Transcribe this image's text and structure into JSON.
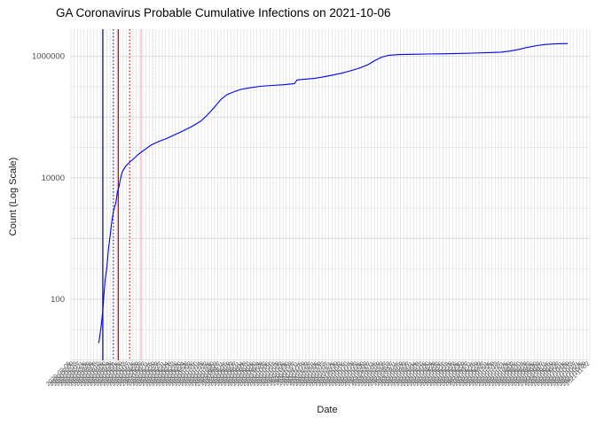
{
  "chart_data": {
    "type": "line",
    "title": "GA Coronavirus Probable Cumulative Infections on 2021-10-06",
    "xlabel": "Date",
    "ylabel": "Count (Log Scale)",
    "y_scale": "log10",
    "y_range": [
      10,
      2800000
    ],
    "x_range": [
      "2020-02-05",
      "2021-11-02"
    ],
    "grid": "on",
    "legend": "none",
    "y_ticks": [
      {
        "label": "100",
        "value": 100
      },
      {
        "label": "10000",
        "value": 10000
      },
      {
        "label": "1000000",
        "value": 1000000
      }
    ],
    "y_minor_values": [
      31.6,
      316,
      3160,
      31600,
      316000
    ],
    "y_major_values": [
      10,
      100,
      1000,
      10000,
      100000,
      1000000
    ],
    "x_tick_labels": [
      "2020-02-05",
      "2020-02-09",
      "2020-02-13",
      "2020-02-17",
      "2020-02-21",
      "2020-02-25",
      "2020-02-29",
      "2020-03-04",
      "2020-03-08",
      "2020-03-12",
      "2020-03-16",
      "2020-03-20",
      "2020-03-24",
      "2020-03-28",
      "2020-04-01",
      "2020-04-05",
      "2020-04-09",
      "2020-04-13",
      "2020-04-17",
      "2020-04-21",
      "2020-04-25",
      "2020-04-29",
      "2020-05-03",
      "2020-05-07",
      "2020-05-11",
      "2020-05-15",
      "2020-05-19",
      "2020-05-23",
      "2020-05-27",
      "2020-05-31",
      "2020-06-04",
      "2020-06-08",
      "2020-06-12",
      "2020-06-16",
      "2020-06-20",
      "2020-06-24",
      "2020-06-28",
      "2020-07-02",
      "2020-07-06",
      "2020-07-10",
      "2020-07-14",
      "2020-07-18",
      "2020-07-22",
      "2020-07-26",
      "2020-07-30",
      "2020-08-03",
      "2020-08-07",
      "2020-08-11",
      "2020-08-15",
      "2020-08-19",
      "2020-08-23",
      "2020-08-27",
      "2020-08-31",
      "2020-09-04",
      "2020-09-08",
      "2020-09-12",
      "2020-09-16",
      "2020-09-20",
      "2020-09-24",
      "2020-09-28",
      "2020-10-02",
      "2020-10-06",
      "2020-10-10",
      "2020-10-14",
      "2020-10-18",
      "2020-10-22",
      "2020-10-26",
      "2020-10-30",
      "2020-11-03",
      "2020-11-07",
      "2020-11-11",
      "2020-11-15",
      "2020-11-19",
      "2020-11-23",
      "2020-11-27",
      "2020-12-01",
      "2020-12-05",
      "2020-12-09",
      "2020-12-13",
      "2020-12-17",
      "2020-12-21",
      "2020-12-25",
      "2020-12-29",
      "2021-01-02",
      "2021-01-06",
      "2021-01-10",
      "2021-01-14",
      "2021-01-18",
      "2021-01-22",
      "2021-01-26",
      "2021-01-30",
      "2021-02-03",
      "2021-02-07",
      "2021-02-11",
      "2021-02-15",
      "2021-02-19",
      "2021-02-23",
      "2021-02-27",
      "2021-03-03",
      "2021-03-07",
      "2021-03-11",
      "2021-03-15",
      "2021-03-19",
      "2021-03-23",
      "2021-03-27",
      "2021-03-31",
      "2021-04-04",
      "2021-04-08",
      "2021-04-12",
      "2021-04-16",
      "2021-04-20",
      "2021-04-24",
      "2021-04-28",
      "2021-05-02",
      "2021-05-06",
      "2021-05-10",
      "2021-05-14",
      "2021-05-18",
      "2021-05-22",
      "2021-05-26",
      "2021-05-30",
      "2021-06-03",
      "2021-06-07",
      "2021-06-11",
      "2021-06-15",
      "2021-06-19",
      "2021-06-23",
      "2021-06-27",
      "2021-07-01",
      "2021-07-05",
      "2021-07-09",
      "2021-07-13",
      "2021-07-17",
      "2021-07-21",
      "2021-07-25",
      "2021-07-29",
      "2021-08-02",
      "2021-08-06",
      "2021-08-10",
      "2021-08-14",
      "2021-08-18",
      "2021-08-22",
      "2021-08-26",
      "2021-08-30",
      "2021-09-03",
      "2021-09-07",
      "2021-09-11",
      "2021-09-15",
      "2021-09-19",
      "2021-09-23",
      "2021-09-27",
      "2021-10-01",
      "2021-10-05",
      "2021-10-09",
      "2021-10-13",
      "2021-10-17",
      "2021-10-21",
      "2021-10-25",
      "2021-10-29",
      "2021-11-02"
    ],
    "reference_lines": [
      {
        "date": "2020-03-15",
        "color": "#1515C8",
        "style": "solid"
      },
      {
        "date": "2020-03-28",
        "color": "#1515C8",
        "style": "dotted"
      },
      {
        "date": "2020-04-03",
        "color": "#DD0000",
        "style": "solid"
      },
      {
        "date": "2020-04-17",
        "color": "#DD0000",
        "style": "dotted"
      },
      {
        "date": "2020-05-01",
        "color": "#FFB3C6",
        "style": "solid"
      },
      {
        "date": "2020-05-16",
        "color": "#FFD6E0",
        "style": "dotted"
      }
    ],
    "series": [
      {
        "name": "Probable cumulative infections",
        "color": "#0000EE",
        "points": [
          [
            "2020-03-10",
            19
          ],
          [
            "2020-03-13",
            35
          ],
          [
            "2020-03-15",
            65
          ],
          [
            "2020-03-16",
            100
          ],
          [
            "2020-03-18",
            210
          ],
          [
            "2020-03-20",
            335
          ],
          [
            "2020-03-22",
            680
          ],
          [
            "2020-03-24",
            1120
          ],
          [
            "2020-03-26",
            1860
          ],
          [
            "2020-03-28",
            2770
          ],
          [
            "2020-03-31",
            3900
          ],
          [
            "2020-04-02",
            5800
          ],
          [
            "2020-04-04",
            7400
          ],
          [
            "2020-04-06",
            10000
          ],
          [
            "2020-04-08",
            12600
          ],
          [
            "2020-04-12",
            15400
          ],
          [
            "2020-04-16",
            17600
          ],
          [
            "2020-04-21",
            20100
          ],
          [
            "2020-04-28",
            24600
          ],
          [
            "2020-05-04",
            28200
          ],
          [
            "2020-05-13",
            34500
          ],
          [
            "2020-05-22",
            39300
          ],
          [
            "2020-05-31",
            43700
          ],
          [
            "2020-06-10",
            50100
          ],
          [
            "2020-06-21",
            58900
          ],
          [
            "2020-07-02",
            69600
          ],
          [
            "2020-07-13",
            85500
          ],
          [
            "2020-07-20",
            104000
          ],
          [
            "2020-07-29",
            141000
          ],
          [
            "2020-08-07",
            196000
          ],
          [
            "2020-08-14",
            233000
          ],
          [
            "2020-08-22",
            258000
          ],
          [
            "2020-08-31",
            285000
          ],
          [
            "2020-09-11",
            303000
          ],
          [
            "2020-09-24",
            321000
          ],
          [
            "2020-10-08",
            331000
          ],
          [
            "2020-10-23",
            341000
          ],
          [
            "2020-11-05",
            356000
          ],
          [
            "2020-11-08",
            408000
          ],
          [
            "2020-11-18",
            420000
          ],
          [
            "2020-11-29",
            432000
          ],
          [
            "2020-12-10",
            457000
          ],
          [
            "2020-12-21",
            489000
          ],
          [
            "2021-01-01",
            525000
          ],
          [
            "2021-01-12",
            575000
          ],
          [
            "2021-01-23",
            635000
          ],
          [
            "2021-02-03",
            727000
          ],
          [
            "2021-02-11",
            845000
          ],
          [
            "2021-02-20",
            970000
          ],
          [
            "2021-03-01",
            1040000
          ],
          [
            "2021-03-14",
            1070000
          ],
          [
            "2021-03-30",
            1080000
          ],
          [
            "2021-04-16",
            1090000
          ],
          [
            "2021-05-05",
            1100000
          ],
          [
            "2021-05-23",
            1115000
          ],
          [
            "2021-06-11",
            1130000
          ],
          [
            "2021-07-01",
            1150000
          ],
          [
            "2021-07-16",
            1170000
          ],
          [
            "2021-07-27",
            1220000
          ],
          [
            "2021-08-07",
            1300000
          ],
          [
            "2021-08-18",
            1410000
          ],
          [
            "2021-08-29",
            1500000
          ],
          [
            "2021-09-09",
            1570000
          ],
          [
            "2021-09-20",
            1600000
          ],
          [
            "2021-09-29",
            1615000
          ],
          [
            "2021-10-06",
            1620000
          ]
        ]
      }
    ]
  },
  "colors": {
    "series_line": "#0000EE",
    "grid_major": "#DBDBDB",
    "grid_minor": "#ECECEC",
    "grid_vertical": "#E2E2E2",
    "axis_text": "#4D4D4D",
    "title_text": "#000000",
    "background": "#FFFFFF"
  }
}
